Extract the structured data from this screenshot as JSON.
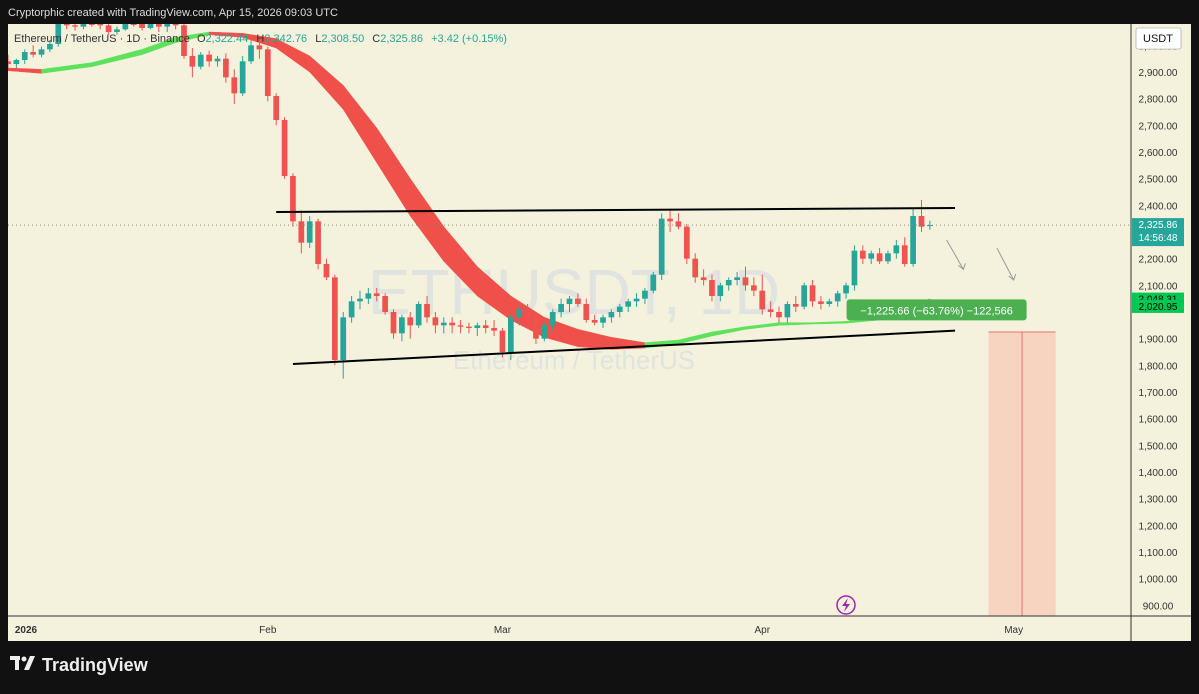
{
  "header": {
    "attribution": "Cryptorphic created with TradingView.com, Apr 15, 2026 09:03 UTC"
  },
  "footer": {
    "brand": "TradingView",
    "logo_icon": "tradingview-logo-icon"
  },
  "chart_header": {
    "symbol": "Ethereum / TetherUS · 1D · Binance",
    "ohlc": [
      {
        "key": "O",
        "value": "2,322.44"
      },
      {
        "key": "H",
        "value": "2,342.76"
      },
      {
        "key": "L",
        "value": "2,308.50"
      },
      {
        "key": "C",
        "value": "2,325.86"
      }
    ],
    "change": "+3.42 (+0.15%)",
    "watermark": "ETHUSDT, 1D",
    "watermark_sub": "Ethereum / TetherUS"
  },
  "colors": {
    "up": "#26a69a",
    "down": "#ef5350",
    "background": "#f4f1dc",
    "ribbon_down": "#f0504a",
    "ribbon_up": "#5ee25c",
    "projection": "#f7c9b6",
    "label_green": "#4caf50"
  },
  "chart_data": {
    "type": "candlestick",
    "currency_label": "USDT",
    "y_ticks": [
      3000,
      2900,
      2800,
      2700,
      2600,
      2500,
      2400,
      2200,
      2100,
      1900,
      1800,
      1700,
      1600,
      1500,
      1400,
      1300,
      1200,
      1100,
      1000,
      900
    ],
    "y_tick_labels": [
      "3,000.00",
      "2,900.00",
      "2,800.00",
      "2,700.00",
      "2,600.00",
      "2,500.00",
      "2,400.00",
      "2,200.00",
      "2,100.00",
      "1,900.00",
      "1,800.00",
      "1,700.00",
      "1,600.00",
      "1,500.00",
      "1,400.00",
      "1,300.00",
      "1,200.00",
      "1,100.00",
      "1,000.00",
      "900.00"
    ],
    "ylim": [
      860,
      3080
    ],
    "x_labels": [
      {
        "label": "2026",
        "bold": true,
        "day": -4
      },
      {
        "label": "Feb",
        "day": 27
      },
      {
        "label": "Mar",
        "day": 55
      },
      {
        "label": "Apr",
        "day": 86
      },
      {
        "label": "May",
        "day": 116
      }
    ],
    "xlim": [
      -4,
      130
    ],
    "price_tags": [
      {
        "value": "2,325.86",
        "price": 2325.86,
        "sub": "14:56:48",
        "color": "#26a69a"
      },
      {
        "value": "2,048.31",
        "price": 2048.31,
        "color": "#00c853"
      },
      {
        "value": "2,020.95",
        "price": 2020.95,
        "color": "#00c853"
      }
    ],
    "current_price": 2325.86,
    "candles": [
      {
        "d": -4,
        "o": 2940,
        "h": 2965,
        "l": 2910,
        "c": 2930
      },
      {
        "d": -3,
        "o": 2930,
        "h": 2950,
        "l": 2915,
        "c": 2945
      },
      {
        "d": -2,
        "o": 2945,
        "h": 2985,
        "l": 2930,
        "c": 2975
      },
      {
        "d": -1,
        "o": 2975,
        "h": 3000,
        "l": 2955,
        "c": 2965
      },
      {
        "d": 0,
        "o": 2965,
        "h": 2995,
        "l": 2955,
        "c": 2985
      },
      {
        "d": 1,
        "o": 2985,
        "h": 3020,
        "l": 2975,
        "c": 3005
      },
      {
        "d": 2,
        "o": 3005,
        "h": 3090,
        "l": 2995,
        "c": 3085
      },
      {
        "d": 3,
        "o": 3085,
        "h": 3100,
        "l": 3060,
        "c": 3075
      },
      {
        "d": 4,
        "o": 3075,
        "h": 3100,
        "l": 3055,
        "c": 3070
      },
      {
        "d": 5,
        "o": 3070,
        "h": 3100,
        "l": 3060,
        "c": 3095
      },
      {
        "d": 6,
        "o": 3095,
        "h": 3100,
        "l": 3070,
        "c": 3080
      },
      {
        "d": 7,
        "o": 3080,
        "h": 3100,
        "l": 3060,
        "c": 3075
      },
      {
        "d": 8,
        "o": 3075,
        "h": 3100,
        "l": 3040,
        "c": 3050
      },
      {
        "d": 9,
        "o": 3050,
        "h": 3070,
        "l": 3040,
        "c": 3060
      },
      {
        "d": 10,
        "o": 3060,
        "h": 3100,
        "l": 3055,
        "c": 3095
      },
      {
        "d": 11,
        "o": 3095,
        "h": 3100,
        "l": 3070,
        "c": 3080
      },
      {
        "d": 12,
        "o": 3080,
        "h": 3100,
        "l": 3055,
        "c": 3065
      },
      {
        "d": 13,
        "o": 3065,
        "h": 3100,
        "l": 3060,
        "c": 3095
      },
      {
        "d": 14,
        "o": 3095,
        "h": 3100,
        "l": 3050,
        "c": 3070
      },
      {
        "d": 15,
        "o": 3070,
        "h": 3100,
        "l": 3050,
        "c": 3085
      },
      {
        "d": 16,
        "o": 3085,
        "h": 3100,
        "l": 3060,
        "c": 3075
      },
      {
        "d": 17,
        "o": 3075,
        "h": 3080,
        "l": 2950,
        "c": 2960
      },
      {
        "d": 18,
        "o": 2960,
        "h": 2990,
        "l": 2880,
        "c": 2920
      },
      {
        "d": 19,
        "o": 2920,
        "h": 2975,
        "l": 2910,
        "c": 2965
      },
      {
        "d": 20,
        "o": 2965,
        "h": 2980,
        "l": 2920,
        "c": 2940
      },
      {
        "d": 21,
        "o": 2940,
        "h": 2960,
        "l": 2920,
        "c": 2950
      },
      {
        "d": 22,
        "o": 2950,
        "h": 2970,
        "l": 2860,
        "c": 2880
      },
      {
        "d": 23,
        "o": 2880,
        "h": 2910,
        "l": 2780,
        "c": 2820
      },
      {
        "d": 24,
        "o": 2820,
        "h": 2960,
        "l": 2810,
        "c": 2940
      },
      {
        "d": 25,
        "o": 2940,
        "h": 3020,
        "l": 2930,
        "c": 3000
      },
      {
        "d": 26,
        "o": 3000,
        "h": 3010,
        "l": 2950,
        "c": 2985
      },
      {
        "d": 27,
        "o": 2985,
        "h": 2995,
        "l": 2790,
        "c": 2810
      },
      {
        "d": 28,
        "o": 2810,
        "h": 2820,
        "l": 2700,
        "c": 2720
      },
      {
        "d": 29,
        "o": 2720,
        "h": 2730,
        "l": 2500,
        "c": 2510
      },
      {
        "d": 30,
        "o": 2510,
        "h": 2520,
        "l": 2320,
        "c": 2340
      },
      {
        "d": 31,
        "o": 2340,
        "h": 2380,
        "l": 2220,
        "c": 2260
      },
      {
        "d": 32,
        "o": 2260,
        "h": 2360,
        "l": 2240,
        "c": 2340
      },
      {
        "d": 33,
        "o": 2340,
        "h": 2350,
        "l": 2160,
        "c": 2180
      },
      {
        "d": 34,
        "o": 2180,
        "h": 2200,
        "l": 2120,
        "c": 2130
      },
      {
        "d": 35,
        "o": 2130,
        "h": 2140,
        "l": 1800,
        "c": 1820
      },
      {
        "d": 36,
        "o": 1820,
        "h": 2000,
        "l": 1750,
        "c": 1980
      },
      {
        "d": 37,
        "o": 1980,
        "h": 2060,
        "l": 1960,
        "c": 2040
      },
      {
        "d": 38,
        "o": 2040,
        "h": 2080,
        "l": 2010,
        "c": 2050
      },
      {
        "d": 39,
        "o": 2050,
        "h": 2090,
        "l": 2030,
        "c": 2070
      },
      {
        "d": 40,
        "o": 2070,
        "h": 2090,
        "l": 2040,
        "c": 2060
      },
      {
        "d": 41,
        "o": 2060,
        "h": 2070,
        "l": 1990,
        "c": 2000
      },
      {
        "d": 42,
        "o": 2000,
        "h": 2010,
        "l": 1900,
        "c": 1920
      },
      {
        "d": 43,
        "o": 1920,
        "h": 1990,
        "l": 1890,
        "c": 1980
      },
      {
        "d": 44,
        "o": 1980,
        "h": 2000,
        "l": 1900,
        "c": 1950
      },
      {
        "d": 45,
        "o": 1950,
        "h": 2040,
        "l": 1940,
        "c": 2030
      },
      {
        "d": 46,
        "o": 2030,
        "h": 2060,
        "l": 1960,
        "c": 1980
      },
      {
        "d": 47,
        "o": 1980,
        "h": 2000,
        "l": 1920,
        "c": 1950
      },
      {
        "d": 48,
        "o": 1950,
        "h": 1980,
        "l": 1920,
        "c": 1960
      },
      {
        "d": 49,
        "o": 1960,
        "h": 1980,
        "l": 1920,
        "c": 1950
      },
      {
        "d": 50,
        "o": 1950,
        "h": 1970,
        "l": 1920,
        "c": 1945
      },
      {
        "d": 51,
        "o": 1945,
        "h": 1960,
        "l": 1920,
        "c": 1940
      },
      {
        "d": 52,
        "o": 1940,
        "h": 1960,
        "l": 1910,
        "c": 1950
      },
      {
        "d": 53,
        "o": 1950,
        "h": 1970,
        "l": 1920,
        "c": 1940
      },
      {
        "d": 54,
        "o": 1940,
        "h": 1970,
        "l": 1910,
        "c": 1930
      },
      {
        "d": 55,
        "o": 1930,
        "h": 1940,
        "l": 1830,
        "c": 1850
      },
      {
        "d": 56,
        "o": 1850,
        "h": 1990,
        "l": 1820,
        "c": 1980
      },
      {
        "d": 57,
        "o": 1980,
        "h": 2030,
        "l": 1950,
        "c": 2010
      },
      {
        "d": 58,
        "o": 2010,
        "h": 2030,
        "l": 1960,
        "c": 1980
      },
      {
        "d": 59,
        "o": 1980,
        "h": 2000,
        "l": 1880,
        "c": 1900
      },
      {
        "d": 60,
        "o": 1900,
        "h": 1960,
        "l": 1890,
        "c": 1950
      },
      {
        "d": 61,
        "o": 1950,
        "h": 2010,
        "l": 1930,
        "c": 2000
      },
      {
        "d": 62,
        "o": 2000,
        "h": 2050,
        "l": 1980,
        "c": 2030
      },
      {
        "d": 63,
        "o": 2030,
        "h": 2060,
        "l": 2000,
        "c": 2050
      },
      {
        "d": 64,
        "o": 2050,
        "h": 2070,
        "l": 2020,
        "c": 2030
      },
      {
        "d": 65,
        "o": 2030,
        "h": 2050,
        "l": 1960,
        "c": 1970
      },
      {
        "d": 66,
        "o": 1970,
        "h": 1990,
        "l": 1950,
        "c": 1960
      },
      {
        "d": 67,
        "o": 1960,
        "h": 1990,
        "l": 1940,
        "c": 1980
      },
      {
        "d": 68,
        "o": 1980,
        "h": 2010,
        "l": 1960,
        "c": 2000
      },
      {
        "d": 69,
        "o": 2000,
        "h": 2030,
        "l": 1980,
        "c": 2020
      },
      {
        "d": 70,
        "o": 2020,
        "h": 2050,
        "l": 2000,
        "c": 2040
      },
      {
        "d": 71,
        "o": 2040,
        "h": 2070,
        "l": 2020,
        "c": 2050
      },
      {
        "d": 72,
        "o": 2050,
        "h": 2090,
        "l": 2030,
        "c": 2080
      },
      {
        "d": 73,
        "o": 2080,
        "h": 2150,
        "l": 2070,
        "c": 2140
      },
      {
        "d": 74,
        "o": 2140,
        "h": 2370,
        "l": 2120,
        "c": 2350
      },
      {
        "d": 75,
        "o": 2350,
        "h": 2380,
        "l": 2300,
        "c": 2340
      },
      {
        "d": 76,
        "o": 2340,
        "h": 2370,
        "l": 2310,
        "c": 2320
      },
      {
        "d": 77,
        "o": 2320,
        "h": 2330,
        "l": 2180,
        "c": 2200
      },
      {
        "d": 78,
        "o": 2200,
        "h": 2220,
        "l": 2110,
        "c": 2130
      },
      {
        "d": 79,
        "o": 2130,
        "h": 2160,
        "l": 2100,
        "c": 2120
      },
      {
        "d": 80,
        "o": 2120,
        "h": 2140,
        "l": 2040,
        "c": 2060
      },
      {
        "d": 81,
        "o": 2060,
        "h": 2110,
        "l": 2040,
        "c": 2100
      },
      {
        "d": 82,
        "o": 2100,
        "h": 2130,
        "l": 2080,
        "c": 2120
      },
      {
        "d": 83,
        "o": 2120,
        "h": 2150,
        "l": 2100,
        "c": 2130
      },
      {
        "d": 84,
        "o": 2130,
        "h": 2170,
        "l": 2080,
        "c": 2100
      },
      {
        "d": 85,
        "o": 2100,
        "h": 2130,
        "l": 2060,
        "c": 2080
      },
      {
        "d": 86,
        "o": 2080,
        "h": 2140,
        "l": 1990,
        "c": 2010
      },
      {
        "d": 87,
        "o": 2010,
        "h": 2040,
        "l": 1980,
        "c": 2000
      },
      {
        "d": 88,
        "o": 2000,
        "h": 2020,
        "l": 1960,
        "c": 1980
      },
      {
        "d": 89,
        "o": 1980,
        "h": 2040,
        "l": 1960,
        "c": 2030
      },
      {
        "d": 90,
        "o": 2030,
        "h": 2060,
        "l": 2000,
        "c": 2020
      },
      {
        "d": 91,
        "o": 2020,
        "h": 2110,
        "l": 2010,
        "c": 2100
      },
      {
        "d": 92,
        "o": 2100,
        "h": 2120,
        "l": 2020,
        "c": 2040
      },
      {
        "d": 93,
        "o": 2040,
        "h": 2060,
        "l": 2010,
        "c": 2030
      },
      {
        "d": 94,
        "o": 2030,
        "h": 2050,
        "l": 2020,
        "c": 2040
      },
      {
        "d": 95,
        "o": 2040,
        "h": 2080,
        "l": 2020,
        "c": 2070
      },
      {
        "d": 96,
        "o": 2070,
        "h": 2110,
        "l": 2050,
        "c": 2100
      },
      {
        "d": 97,
        "o": 2100,
        "h": 2250,
        "l": 2080,
        "c": 2230
      },
      {
        "d": 98,
        "o": 2230,
        "h": 2250,
        "l": 2180,
        "c": 2200
      },
      {
        "d": 99,
        "o": 2200,
        "h": 2230,
        "l": 2180,
        "c": 2220
      },
      {
        "d": 100,
        "o": 2220,
        "h": 2240,
        "l": 2180,
        "c": 2190
      },
      {
        "d": 101,
        "o": 2190,
        "h": 2230,
        "l": 2180,
        "c": 2220
      },
      {
        "d": 102,
        "o": 2220,
        "h": 2270,
        "l": 2200,
        "c": 2250
      },
      {
        "d": 103,
        "o": 2250,
        "h": 2280,
        "l": 2170,
        "c": 2180
      },
      {
        "d": 104,
        "o": 2180,
        "h": 2390,
        "l": 2170,
        "c": 2360
      },
      {
        "d": 105,
        "o": 2360,
        "h": 2420,
        "l": 2300,
        "c": 2320
      },
      {
        "d": 106,
        "o": 2322.44,
        "h": 2342.76,
        "l": 2308.5,
        "c": 2325.86
      }
    ],
    "ribbon": [
      {
        "d": -4,
        "a": 2915,
        "b": 2905
      },
      {
        "d": 0,
        "a": 2910,
        "b": 2895
      },
      {
        "d": 6,
        "a": 2935,
        "b": 2920
      },
      {
        "d": 12,
        "a": 2985,
        "b": 2965
      },
      {
        "d": 16,
        "a": 3030,
        "b": 3010
      },
      {
        "d": 20,
        "a": 3050,
        "b": 3040
      },
      {
        "d": 24,
        "a": 3045,
        "b": 3030
      },
      {
        "d": 28,
        "a": 3025,
        "b": 2990
      },
      {
        "d": 32,
        "a": 2960,
        "b": 2900
      },
      {
        "d": 36,
        "a": 2850,
        "b": 2760
      },
      {
        "d": 40,
        "a": 2690,
        "b": 2560
      },
      {
        "d": 44,
        "a": 2500,
        "b": 2360
      },
      {
        "d": 48,
        "a": 2320,
        "b": 2190
      },
      {
        "d": 52,
        "a": 2170,
        "b": 2060
      },
      {
        "d": 56,
        "a": 2060,
        "b": 1970
      },
      {
        "d": 60,
        "a": 1980,
        "b": 1905
      },
      {
        "d": 64,
        "a": 1935,
        "b": 1870
      },
      {
        "d": 68,
        "a": 1905,
        "b": 1860
      },
      {
        "d": 72,
        "a": 1885,
        "b": 1865
      },
      {
        "d": 76,
        "a": 1895,
        "b": 1880
      },
      {
        "d": 80,
        "a": 1925,
        "b": 1910
      },
      {
        "d": 84,
        "a": 1945,
        "b": 1935
      },
      {
        "d": 88,
        "a": 1960,
        "b": 1950
      },
      {
        "d": 92,
        "a": 1960,
        "b": 1955
      },
      {
        "d": 96,
        "a": 1965,
        "b": 1958
      },
      {
        "d": 100,
        "a": 1980,
        "b": 1970
      },
      {
        "d": 103,
        "a": 2005,
        "b": 1990
      },
      {
        "d": 106,
        "a": 2050,
        "b": 2020
      }
    ],
    "trendlines": [
      {
        "from": {
          "d": 28,
          "p": 2375
        },
        "to": {
          "d": 109,
          "p": 2390
        }
      },
      {
        "from": {
          "d": 30,
          "p": 1805
        },
        "to": {
          "d": 109,
          "p": 1930
        }
      }
    ],
    "projection": {
      "d_from": 113,
      "d_to": 121,
      "p_top": 1925,
      "p_bottom": 860,
      "line_d": 117
    },
    "measure_label": "−1,225.66 (−63.76%) −122,566",
    "measure_label_price": 2020.95,
    "measure_label_day": 100,
    "arrows": [
      {
        "from": {
          "d": 108,
          "p": 2270
        },
        "to": {
          "d": 110,
          "p": 2160
        }
      },
      {
        "from": {
          "d": 114,
          "p": 2240
        },
        "to": {
          "d": 116,
          "p": 2120
        }
      }
    ]
  }
}
